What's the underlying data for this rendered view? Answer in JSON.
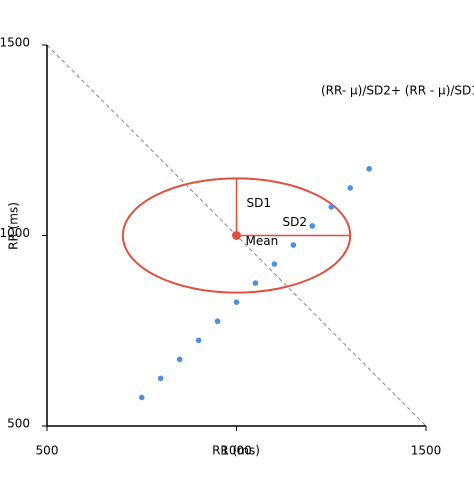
{
  "chart_data": {
    "type": "scatter",
    "x_label": "RR (ms)",
    "y_label": "RR (ms)",
    "annotation": "(RR- μ)/SD2+ (RR   - μ)/SD1",
    "xlim": [
      500,
      1500
    ],
    "ylim": [
      500,
      1500
    ],
    "xticks": [
      500,
      1000,
      1500
    ],
    "yticks": [
      500,
      1000,
      1500
    ],
    "series": [
      {
        "name": "RR",
        "color": "#4a90e2",
        "x": [
          750,
          800,
          850,
          900,
          950,
          1000,
          1050,
          1100,
          1150,
          1200,
          1250,
          1300,
          1350
        ],
        "values": [
          575,
          625,
          675,
          725,
          775,
          825,
          875,
          925,
          975,
          1025,
          1075,
          1125,
          1175
        ]
      }
    ],
    "ellipse": {
      "color": "#e05040",
      "center_x": 1000,
      "center_y": 1000,
      "sd1": 150,
      "sd2": 300,
      "sd1_label": "SD1",
      "sd2_label": "SD2",
      "mean_label": "Mean"
    }
  }
}
